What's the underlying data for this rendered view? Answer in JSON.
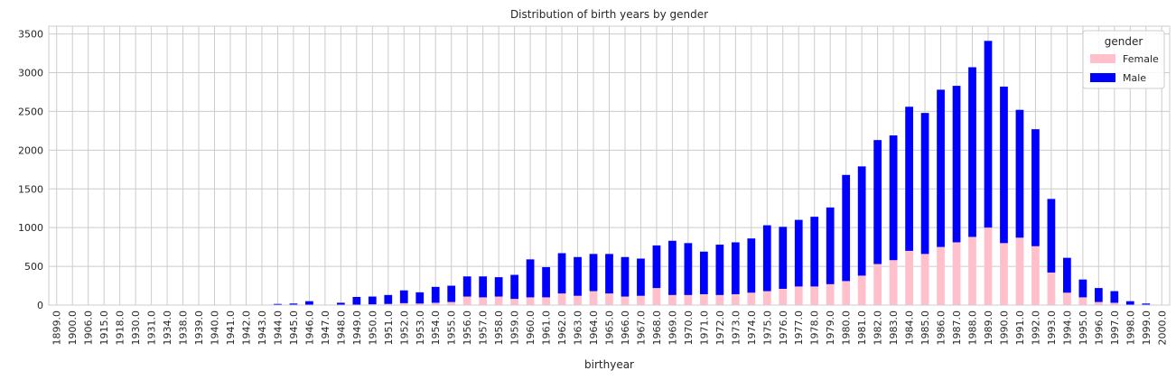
{
  "chart_data": {
    "type": "bar",
    "stacked": true,
    "title": "Distribution of birth years by gender",
    "xlabel": "birthyear",
    "ylabel": "",
    "ylim": [
      0,
      3600
    ],
    "yticks": [
      0,
      500,
      1000,
      1500,
      2000,
      2500,
      3000,
      3500
    ],
    "grid": true,
    "legend": {
      "title": "gender",
      "placement": "top-right"
    },
    "categories": [
      "1899.0",
      "1900.0",
      "1906.0",
      "1915.0",
      "1918.0",
      "1930.0",
      "1931.0",
      "1934.0",
      "1938.0",
      "1939.0",
      "1940.0",
      "1941.0",
      "1942.0",
      "1943.0",
      "1944.0",
      "1945.0",
      "1946.0",
      "1947.0",
      "1948.0",
      "1949.0",
      "1950.0",
      "1951.0",
      "1952.0",
      "1953.0",
      "1954.0",
      "1955.0",
      "1956.0",
      "1957.0",
      "1958.0",
      "1959.0",
      "1960.0",
      "1961.0",
      "1962.0",
      "1963.0",
      "1964.0",
      "1965.0",
      "1966.0",
      "1967.0",
      "1968.0",
      "1969.0",
      "1970.0",
      "1971.0",
      "1972.0",
      "1973.0",
      "1974.0",
      "1975.0",
      "1976.0",
      "1977.0",
      "1978.0",
      "1979.0",
      "1980.0",
      "1981.0",
      "1982.0",
      "1983.0",
      "1984.0",
      "1985.0",
      "1986.0",
      "1987.0",
      "1988.0",
      "1989.0",
      "1990.0",
      "1991.0",
      "1992.0",
      "1993.0",
      "1994.0",
      "1995.0",
      "1996.0",
      "1997.0",
      "1998.0",
      "1999.0",
      "2000.0"
    ],
    "series": [
      {
        "name": "Female",
        "color": "#ffc0cb",
        "values": [
          0,
          0,
          0,
          0,
          0,
          0,
          0,
          0,
          0,
          0,
          0,
          0,
          0,
          0,
          0,
          0,
          0,
          0,
          0,
          5,
          10,
          15,
          25,
          20,
          30,
          40,
          110,
          100,
          110,
          80,
          100,
          100,
          150,
          120,
          180,
          150,
          110,
          120,
          220,
          130,
          130,
          140,
          130,
          140,
          160,
          180,
          210,
          240,
          240,
          270,
          310,
          380,
          530,
          580,
          700,
          660,
          750,
          810,
          880,
          1000,
          800,
          870,
          760,
          420,
          160,
          100,
          40,
          30,
          0,
          0,
          0
        ]
      },
      {
        "name": "Male",
        "color": "#0000ff",
        "values": [
          0,
          0,
          0,
          0,
          0,
          0,
          0,
          0,
          0,
          0,
          0,
          0,
          0,
          0,
          15,
          20,
          50,
          0,
          30,
          100,
          100,
          115,
          165,
          145,
          205,
          210,
          260,
          270,
          250,
          310,
          490,
          390,
          520,
          500,
          480,
          510,
          510,
          480,
          550,
          700,
          670,
          550,
          650,
          670,
          700,
          850,
          800,
          860,
          900,
          990,
          1370,
          1410,
          1600,
          1610,
          1860,
          1820,
          2030,
          2020,
          2190,
          2410,
          2020,
          1650,
          1510,
          950,
          450,
          230,
          180,
          150,
          50,
          20,
          0
        ]
      }
    ]
  }
}
